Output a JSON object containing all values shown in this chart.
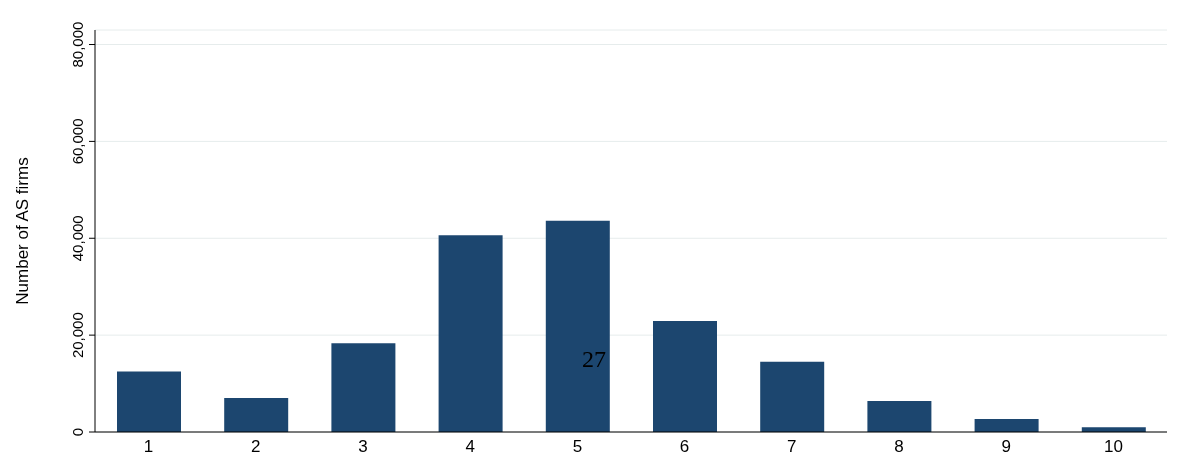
{
  "chart_data": {
    "type": "bar",
    "ylabel": "Number of AS firms",
    "categories": [
      "1",
      "2",
      "3",
      "4",
      "5",
      "6",
      "7",
      "8",
      "9",
      "10"
    ],
    "values": [
      12500,
      7000,
      18300,
      40600,
      43600,
      22900,
      14500,
      6400,
      2700,
      1000
    ],
    "color": "#1c466f",
    "ylim": [
      0,
      83000
    ],
    "yticks": [
      0,
      {
        "value": 20000,
        "label": "20,000"
      },
      {
        "value": 40000,
        "label": "40,000"
      },
      {
        "value": 60000,
        "label": "60,000"
      },
      {
        "value": 80000,
        "label": "80,000"
      }
    ],
    "grid": "y",
    "annotations": [
      "27"
    ]
  }
}
